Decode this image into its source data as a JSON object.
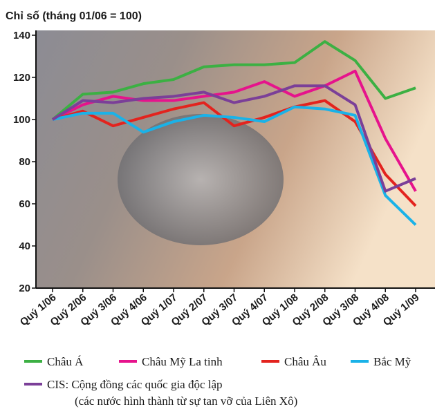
{
  "chart_data": {
    "type": "line",
    "title": "Chỉ số (tháng 01/06 = 100)",
    "categories": [
      "Quý 1/06",
      "Quý 2/06",
      "Quý 3/06",
      "Quý 4/06",
      "Quý 1/07",
      "Quý 2/07",
      "Quý 3/07",
      "Quý 4/07",
      "Quý 1/08",
      "Quý 2/08",
      "Quý 3/08",
      "Quý 4/08",
      "Quý 1/09"
    ],
    "series": [
      {
        "name": "Châu Á",
        "color": "#3cb043",
        "values": [
          100,
          112,
          113,
          117,
          119,
          125,
          126,
          126,
          127,
          137,
          128,
          110,
          115
        ]
      },
      {
        "name": "Châu Mỹ La tinh",
        "color": "#e6138c",
        "values": [
          100,
          107,
          111,
          109,
          109,
          111,
          113,
          118,
          111,
          116,
          123,
          91,
          66
        ]
      },
      {
        "name": "Châu Âu",
        "color": "#e3231e",
        "values": [
          100,
          104,
          97,
          101,
          105,
          108,
          97,
          101,
          106,
          109,
          99,
          74,
          59
        ]
      },
      {
        "name": "Bắc Mỹ",
        "color": "#1ab2e8",
        "values": [
          100,
          103,
          103,
          94,
          99,
          102,
          101,
          99,
          106,
          105,
          102,
          64,
          50
        ]
      },
      {
        "name": "CIS: Cộng đồng các quốc gia độc lập",
        "color": "#7b3f98",
        "values": [
          100,
          109,
          108,
          110,
          111,
          113,
          108,
          111,
          116,
          116,
          107,
          66,
          72
        ]
      }
    ],
    "legend_note": "(các nước hình thành từ sự tan vỡ của Liên Xô)",
    "ylim": [
      20,
      140
    ],
    "yticks": [
      20,
      40,
      60,
      80,
      100,
      120,
      140
    ],
    "grid": false
  }
}
